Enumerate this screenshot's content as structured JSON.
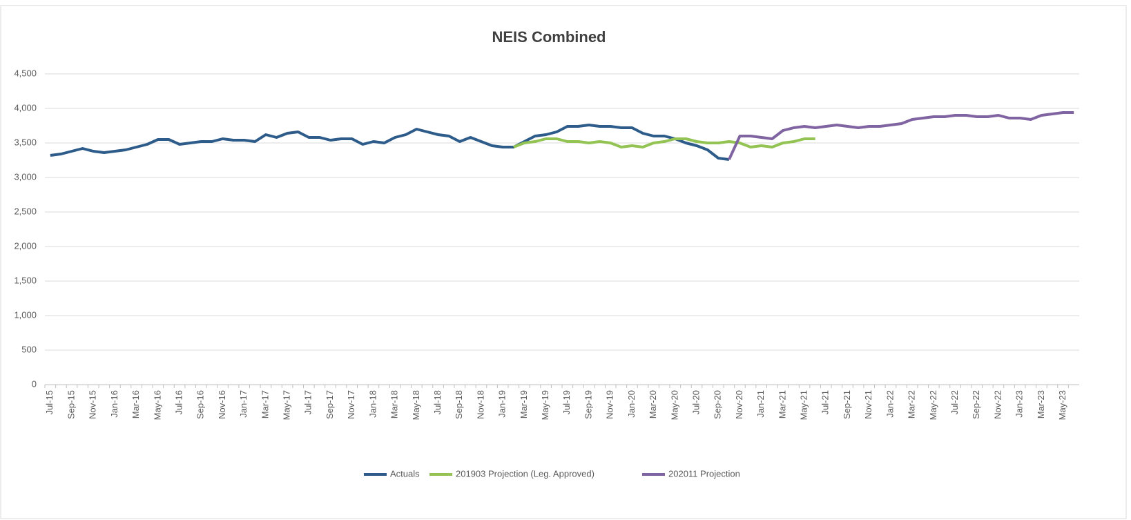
{
  "chart_data": {
    "type": "line",
    "title": "NEIS Combined",
    "categories": [
      "Jul-15",
      null,
      "Sep-15",
      null,
      "Nov-15",
      null,
      "Jan-16",
      null,
      "Mar-16",
      null,
      "May-16",
      null,
      "Jul-16",
      null,
      "Sep-16",
      null,
      "Nov-16",
      null,
      "Jan-17",
      null,
      "Mar-17",
      null,
      "May-17",
      null,
      "Jul-17",
      null,
      "Sep-17",
      null,
      "Nov-17",
      null,
      "Jan-18",
      null,
      "Mar-18",
      null,
      "May-18",
      null,
      "Jul-18",
      null,
      "Sep-18",
      null,
      "Nov-18",
      null,
      "Jan-19",
      null,
      "Mar-19",
      null,
      "May-19",
      null,
      "Jul-19",
      null,
      "Sep-19",
      null,
      "Nov-19",
      null,
      "Jan-20",
      null,
      "Mar-20",
      null,
      "May-20",
      null,
      "Jul-20",
      null,
      "Sep-20",
      null,
      "Nov-20",
      null,
      "Jan-21",
      null,
      "Mar-21",
      null,
      "May-21",
      null,
      "Jul-21",
      null,
      "Sep-21",
      null,
      "Nov-21",
      null,
      "Jan-22",
      null,
      "Mar-22",
      null,
      "May-22",
      null,
      "Jul-22",
      null,
      "Sep-22",
      null,
      "Nov-22",
      null,
      "Jan-23",
      null,
      "Mar-23",
      null,
      "May-23",
      null
    ],
    "series": [
      {
        "name": "Actuals",
        "color": "#2e5c8a",
        "values": [
          3320,
          3340,
          3380,
          3420,
          3380,
          3360,
          3380,
          3400,
          3440,
          3480,
          3550,
          3550,
          3480,
          3500,
          3520,
          3520,
          3560,
          3540,
          3540,
          3520,
          3620,
          3580,
          3640,
          3660,
          3580,
          3580,
          3540,
          3560,
          3560,
          3480,
          3520,
          3500,
          3580,
          3620,
          3700,
          3660,
          3620,
          3600,
          3520,
          3580,
          3520,
          3460,
          3440,
          3440,
          3520,
          3600,
          3620,
          3660,
          3740,
          3740,
          3760,
          3740,
          3740,
          3720,
          3720,
          3640,
          3600,
          3600,
          3560,
          3500,
          3460,
          3400,
          3280,
          3260,
          null,
          null,
          null,
          null,
          null,
          null,
          null,
          null,
          null,
          null,
          null,
          null,
          null,
          null,
          null,
          null,
          null,
          null,
          null,
          null,
          null,
          null,
          null,
          null,
          null,
          null,
          null,
          null,
          null,
          null,
          null,
          null
        ]
      },
      {
        "name": "201903 Projection (Leg. Approved)",
        "color": "#92c353",
        "values": [
          null,
          null,
          null,
          null,
          null,
          null,
          null,
          null,
          null,
          null,
          null,
          null,
          null,
          null,
          null,
          null,
          null,
          null,
          null,
          null,
          null,
          null,
          null,
          null,
          null,
          null,
          null,
          null,
          null,
          null,
          null,
          null,
          null,
          null,
          null,
          null,
          null,
          null,
          null,
          null,
          null,
          null,
          null,
          3440,
          3500,
          3520,
          3560,
          3560,
          3520,
          3520,
          3500,
          3520,
          3500,
          3440,
          3460,
          3440,
          3500,
          3520,
          3560,
          3560,
          3520,
          3500,
          3500,
          3520,
          3500,
          3440,
          3460,
          3440,
          3500,
          3520,
          3560,
          3560,
          null,
          null,
          null,
          null,
          null,
          null,
          null,
          null,
          null,
          null,
          null,
          null,
          null,
          null,
          null,
          null,
          null,
          null,
          null,
          null,
          null,
          null,
          null,
          null
        ]
      },
      {
        "name": "202011 Projection",
        "color": "#8064a2",
        "values": [
          null,
          null,
          null,
          null,
          null,
          null,
          null,
          null,
          null,
          null,
          null,
          null,
          null,
          null,
          null,
          null,
          null,
          null,
          null,
          null,
          null,
          null,
          null,
          null,
          null,
          null,
          null,
          null,
          null,
          null,
          null,
          null,
          null,
          null,
          null,
          null,
          null,
          null,
          null,
          null,
          null,
          null,
          null,
          null,
          null,
          null,
          null,
          null,
          null,
          null,
          null,
          null,
          null,
          null,
          null,
          null,
          null,
          null,
          null,
          null,
          null,
          null,
          null,
          3260,
          3600,
          3600,
          3580,
          3560,
          3680,
          3720,
          3740,
          3720,
          3740,
          3760,
          3740,
          3720,
          3740,
          3740,
          3760,
          3780,
          3840,
          3860,
          3880,
          3880,
          3900,
          3900,
          3880,
          3880,
          3900,
          3860,
          3860,
          3840,
          3900,
          3920,
          3940,
          3940
        ]
      }
    ],
    "ylim": [
      0,
      4500
    ],
    "yticks": [
      0,
      500,
      {
        "value": 1000,
        "label": "1,000"
      },
      {
        "value": 1500,
        "label": "1,500"
      },
      {
        "value": 2000,
        "label": "2,000"
      },
      {
        "value": 2500,
        "label": "2,500"
      },
      {
        "value": 3000,
        "label": "3,000"
      },
      {
        "value": 3500,
        "label": "3,500"
      },
      {
        "value": 4000,
        "label": "4,000"
      },
      {
        "value": 4500,
        "label": "4,500"
      }
    ],
    "grid": true,
    "legend": "bottom"
  }
}
